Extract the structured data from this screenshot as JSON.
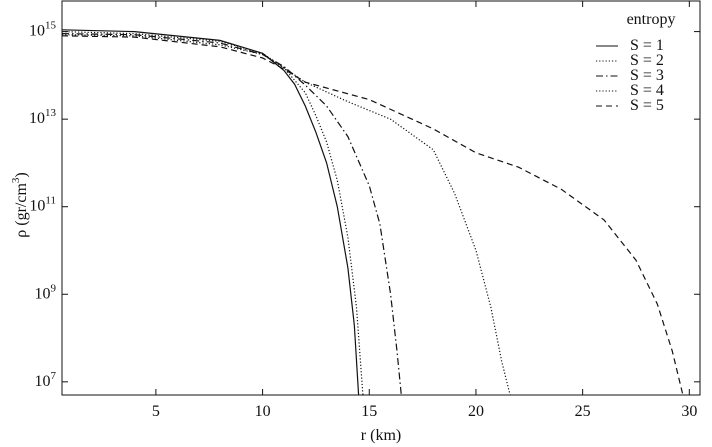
{
  "chart_data": {
    "type": "line",
    "x_label": "r (km)",
    "y_label": "ρ (gr/cm^3)",
    "y_scale": "log",
    "xlim": [
      0.6,
      30.5
    ],
    "xticks": [
      5,
      10,
      15,
      20,
      25,
      30
    ],
    "ylim": [
      5000000.0,
      5000000000000000.0
    ],
    "yticks": [
      {
        "value": 10000000.0,
        "label": "10^7"
      },
      {
        "value": 1000000000.0,
        "label": "10^9"
      },
      {
        "value": 100000000000.0,
        "label": "10^11"
      },
      {
        "value": 10000000000000.0,
        "label": "10^13"
      },
      {
        "value": 1000000000000000.0,
        "label": "10^15"
      }
    ],
    "legend_title": "entropy",
    "legend": "upper right",
    "series": [
      {
        "name": "S = 1",
        "color": "#111111",
        "dash": "solid",
        "x": [
          0.6,
          4,
          8,
          10,
          11,
          11.5,
          12,
          12.5,
          13,
          13.5,
          14,
          14.3,
          14.5
        ],
        "values": [
          1100000000000000.0,
          1000000000000000.0,
          630000000000000.0,
          320000000000000.0,
          130000000000000.0,
          63000000000000.0,
          20000000000000.0,
          5000000000000.0,
          1000000000000.0,
          100000000000.0,
          4000000000.0,
          200000000.0,
          5000000.0
        ]
      },
      {
        "name": "S = 2",
        "color": "#111111",
        "dash": "dotted",
        "x": [
          0.6,
          4,
          8,
          10,
          11,
          12,
          12.5,
          13,
          13.5,
          14,
          14.4,
          14.7
        ],
        "values": [
          1000000000000000.0,
          900000000000000.0,
          600000000000000.0,
          320000000000000.0,
          150000000000000.0,
          40000000000000.0,
          12000000000000.0,
          3000000000000.0,
          400000000000.0,
          20000000000.0,
          500000000.0,
          5000000.0
        ]
      },
      {
        "name": "S = 3",
        "color": "#111111",
        "dash": "dashdot",
        "x": [
          0.6,
          4,
          8,
          10,
          11,
          12,
          13,
          14,
          15,
          15.5,
          16,
          16.3,
          16.5
        ],
        "values": [
          900000000000000.0,
          850000000000000.0,
          550000000000000.0,
          300000000000000.0,
          160000000000000.0,
          60000000000000.0,
          20000000000000.0,
          4000000000000.0,
          300000000000.0,
          40000000000.0,
          1000000000.0,
          50000000.0,
          5000000.0
        ]
      },
      {
        "name": "S = 4",
        "color": "#111111",
        "dash": "dotted",
        "x": [
          0.6,
          4,
          8,
          10,
          11,
          12,
          14,
          16,
          18,
          19,
          20,
          20.7,
          21.2,
          21.6
        ],
        "values": [
          850000000000000.0,
          800000000000000.0,
          500000000000000.0,
          300000000000000.0,
          150000000000000.0,
          70000000000000.0,
          25000000000000.0,
          10000000000000.0,
          2000000000000.0,
          200000000000.0,
          10000000000.0,
          500000000.0,
          30000000.0,
          5000000.0
        ]
      },
      {
        "name": "S = 5",
        "color": "#111111",
        "dash": "dashed",
        "x": [
          0.6,
          4,
          8,
          10,
          11,
          12,
          15,
          18,
          20,
          22,
          24,
          26,
          27.5,
          28.5,
          29.2,
          29.7
        ],
        "values": [
          800000000000000.0,
          750000000000000.0,
          450000000000000.0,
          250000000000000.0,
          140000000000000.0,
          70000000000000.0,
          28000000000000.0,
          6000000000000.0,
          1700000000000.0,
          800000000000.0,
          250000000000.0,
          50000000000.0,
          6000000000.0,
          600000000.0,
          50000000.0,
          5000000.0
        ]
      }
    ]
  }
}
